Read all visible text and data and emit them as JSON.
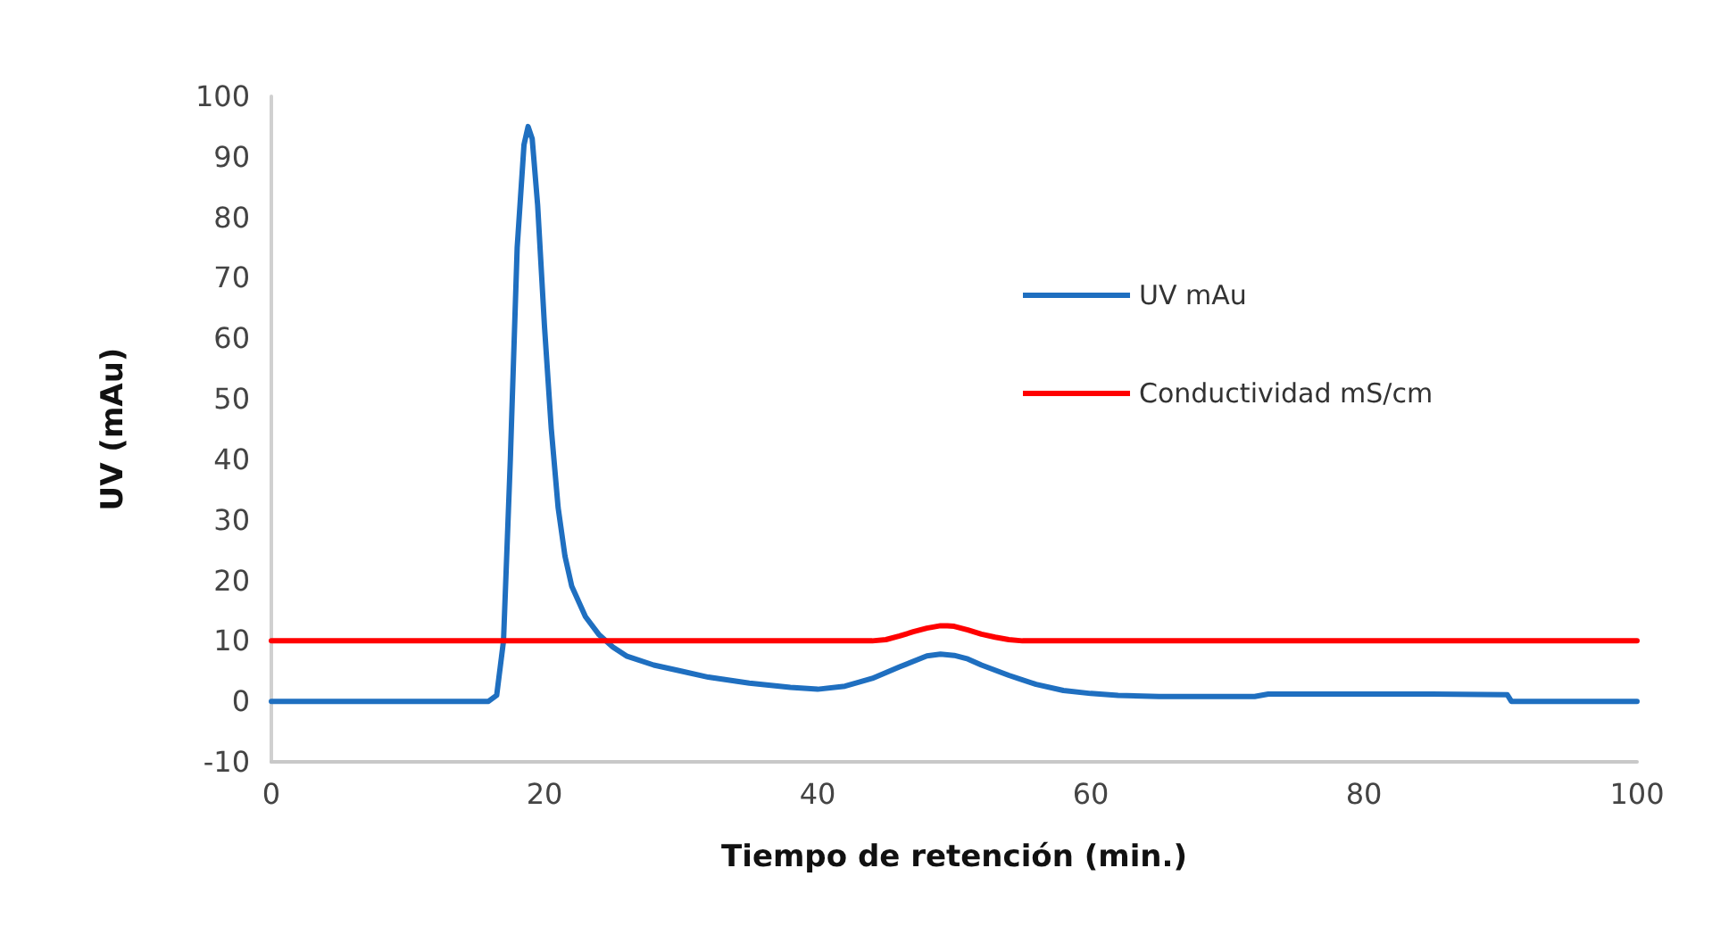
{
  "chart_data": {
    "type": "line",
    "xlabel": "Tiempo de retención (min.)",
    "ylabel": "UV (mAu)",
    "xlim": [
      0,
      100
    ],
    "ylim": [
      -10,
      100
    ],
    "xticks": [
      0,
      20,
      40,
      60,
      80,
      100
    ],
    "yticks": [
      -10,
      0,
      10,
      20,
      30,
      40,
      50,
      60,
      70,
      80,
      90,
      100
    ],
    "grid": false,
    "legend": "top right",
    "marker": "none",
    "line_style": "solid",
    "series": [
      {
        "name": "UV mAu",
        "color": "#1f6fc0",
        "x": [
          0,
          10,
          15,
          15.9,
          16.5,
          17,
          17.5,
          18,
          18.5,
          18.8,
          19.1,
          19.5,
          20,
          20.5,
          21,
          21.5,
          22,
          23,
          24,
          25,
          26,
          28,
          30,
          32,
          35,
          38,
          40,
          42,
          44,
          46,
          48,
          49,
          50,
          51,
          52,
          54,
          56,
          58,
          60,
          62,
          65,
          70,
          72,
          73,
          80,
          85,
          90.5,
          90.8,
          95,
          100
        ],
        "values": [
          0,
          0,
          0,
          0,
          1,
          10,
          40,
          75,
          92,
          95,
          93,
          82,
          62,
          45,
          32,
          24,
          19,
          14,
          11,
          9,
          7.5,
          6,
          5,
          4,
          3,
          2.3,
          2,
          2.5,
          3.8,
          5.7,
          7.5,
          7.8,
          7.6,
          7,
          6,
          4.3,
          2.8,
          1.8,
          1.3,
          1,
          0.8,
          0.8,
          0.8,
          1.2,
          1.2,
          1.2,
          1.1,
          0,
          0,
          0
        ]
      },
      {
        "name": "Conductividad mS/cm",
        "color": "#ff0000",
        "x": [
          0,
          44,
          45,
          46,
          47,
          48,
          49,
          49.5,
          50,
          51,
          52,
          53,
          54,
          55,
          100
        ],
        "values": [
          10,
          10,
          10.2,
          10.8,
          11.5,
          12.1,
          12.5,
          12.5,
          12.4,
          11.8,
          11.1,
          10.6,
          10.2,
          10,
          10
        ]
      }
    ]
  }
}
